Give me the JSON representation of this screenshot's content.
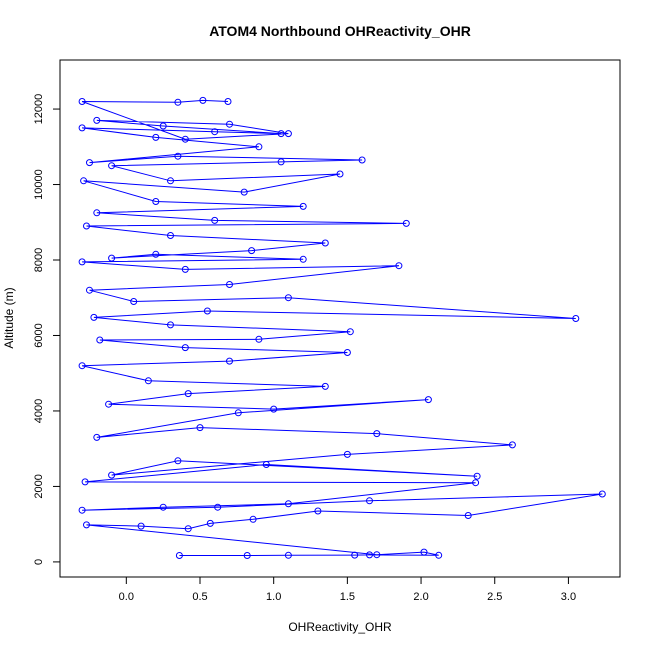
{
  "chart_data": {
    "type": "line",
    "title": "ATOM4 Northbound OHReactivity_OHR",
    "xlabel": "OHReactivity_OHR",
    "ylabel": "Altitude (m)",
    "xlim": [
      -0.45,
      3.35
    ],
    "ylim": [
      -400,
      13300
    ],
    "x_ticks": [
      0.0,
      0.5,
      1.0,
      1.5,
      2.0,
      2.5,
      3.0
    ],
    "x_tick_labels": [
      "0.0",
      "0.5",
      "1.0",
      "1.5",
      "2.0",
      "2.5",
      "3.0"
    ],
    "y_ticks": [
      0,
      2000,
      4000,
      6000,
      8000,
      10000,
      12000
    ],
    "y_tick_labels": [
      "0",
      "2000",
      "4000",
      "6000",
      "8000",
      "10000",
      "12000"
    ],
    "line_color": "#0000ff",
    "marker": "open-circle",
    "series": [
      {
        "name": "OHReactivity_OHR",
        "points": [
          [
            0.36,
            170
          ],
          [
            0.82,
            170
          ],
          [
            1.1,
            175
          ],
          [
            1.55,
            180
          ],
          [
            1.65,
            185
          ],
          [
            2.12,
            175
          ],
          [
            2.02,
            260
          ],
          [
            1.7,
            190
          ],
          [
            -0.27,
            980
          ],
          [
            0.1,
            950
          ],
          [
            0.42,
            880
          ],
          [
            0.57,
            1020
          ],
          [
            0.86,
            1130
          ],
          [
            1.3,
            1350
          ],
          [
            2.32,
            1230
          ],
          [
            3.23,
            1800
          ],
          [
            1.65,
            1620
          ],
          [
            0.62,
            1450
          ],
          [
            -0.3,
            1370
          ],
          [
            0.25,
            1450
          ],
          [
            1.1,
            1540
          ],
          [
            2.37,
            2100
          ],
          [
            -0.28,
            2120
          ],
          [
            0.95,
            2580
          ],
          [
            2.38,
            2270
          ],
          [
            0.35,
            2680
          ],
          [
            -0.1,
            2300
          ],
          [
            1.5,
            2850
          ],
          [
            2.62,
            3100
          ],
          [
            1.7,
            3400
          ],
          [
            0.5,
            3560
          ],
          [
            -0.2,
            3300
          ],
          [
            0.76,
            3950
          ],
          [
            2.05,
            4300
          ],
          [
            1.0,
            4050
          ],
          [
            -0.12,
            4180
          ],
          [
            0.42,
            4460
          ],
          [
            1.35,
            4650
          ],
          [
            0.15,
            4800
          ],
          [
            -0.3,
            5200
          ],
          [
            0.7,
            5320
          ],
          [
            1.5,
            5550
          ],
          [
            0.4,
            5680
          ],
          [
            -0.18,
            5880
          ],
          [
            0.9,
            5900
          ],
          [
            1.52,
            6100
          ],
          [
            0.3,
            6280
          ],
          [
            -0.22,
            6480
          ],
          [
            0.55,
            6650
          ],
          [
            3.05,
            6450
          ],
          [
            1.1,
            7000
          ],
          [
            0.05,
            6900
          ],
          [
            -0.25,
            7200
          ],
          [
            0.7,
            7350
          ],
          [
            1.85,
            7850
          ],
          [
            0.4,
            7750
          ],
          [
            -0.3,
            7950
          ],
          [
            1.2,
            8020
          ],
          [
            0.2,
            8150
          ],
          [
            -0.1,
            8050
          ],
          [
            0.85,
            8250
          ],
          [
            1.35,
            8450
          ],
          [
            0.3,
            8650
          ],
          [
            -0.27,
            8900
          ],
          [
            1.9,
            8970
          ],
          [
            0.6,
            9050
          ],
          [
            -0.2,
            9250
          ],
          [
            1.2,
            9420
          ],
          [
            0.2,
            9550
          ],
          [
            -0.29,
            10100
          ],
          [
            0.8,
            9800
          ],
          [
            1.45,
            10280
          ],
          [
            0.3,
            10100
          ],
          [
            -0.1,
            10500
          ],
          [
            1.05,
            10600
          ],
          [
            1.6,
            10650
          ],
          [
            0.35,
            10750
          ],
          [
            -0.25,
            10580
          ],
          [
            0.9,
            11000
          ],
          [
            0.2,
            11250
          ],
          [
            -0.3,
            11500
          ],
          [
            0.6,
            11400
          ],
          [
            1.05,
            11350
          ],
          [
            0.25,
            11550
          ],
          [
            -0.2,
            11700
          ],
          [
            0.7,
            11600
          ],
          [
            1.1,
            11350
          ],
          [
            0.4,
            11200
          ],
          [
            -0.3,
            12200
          ],
          [
            0.35,
            12180
          ],
          [
            0.52,
            12230
          ],
          [
            0.69,
            12200
          ]
        ]
      }
    ]
  }
}
